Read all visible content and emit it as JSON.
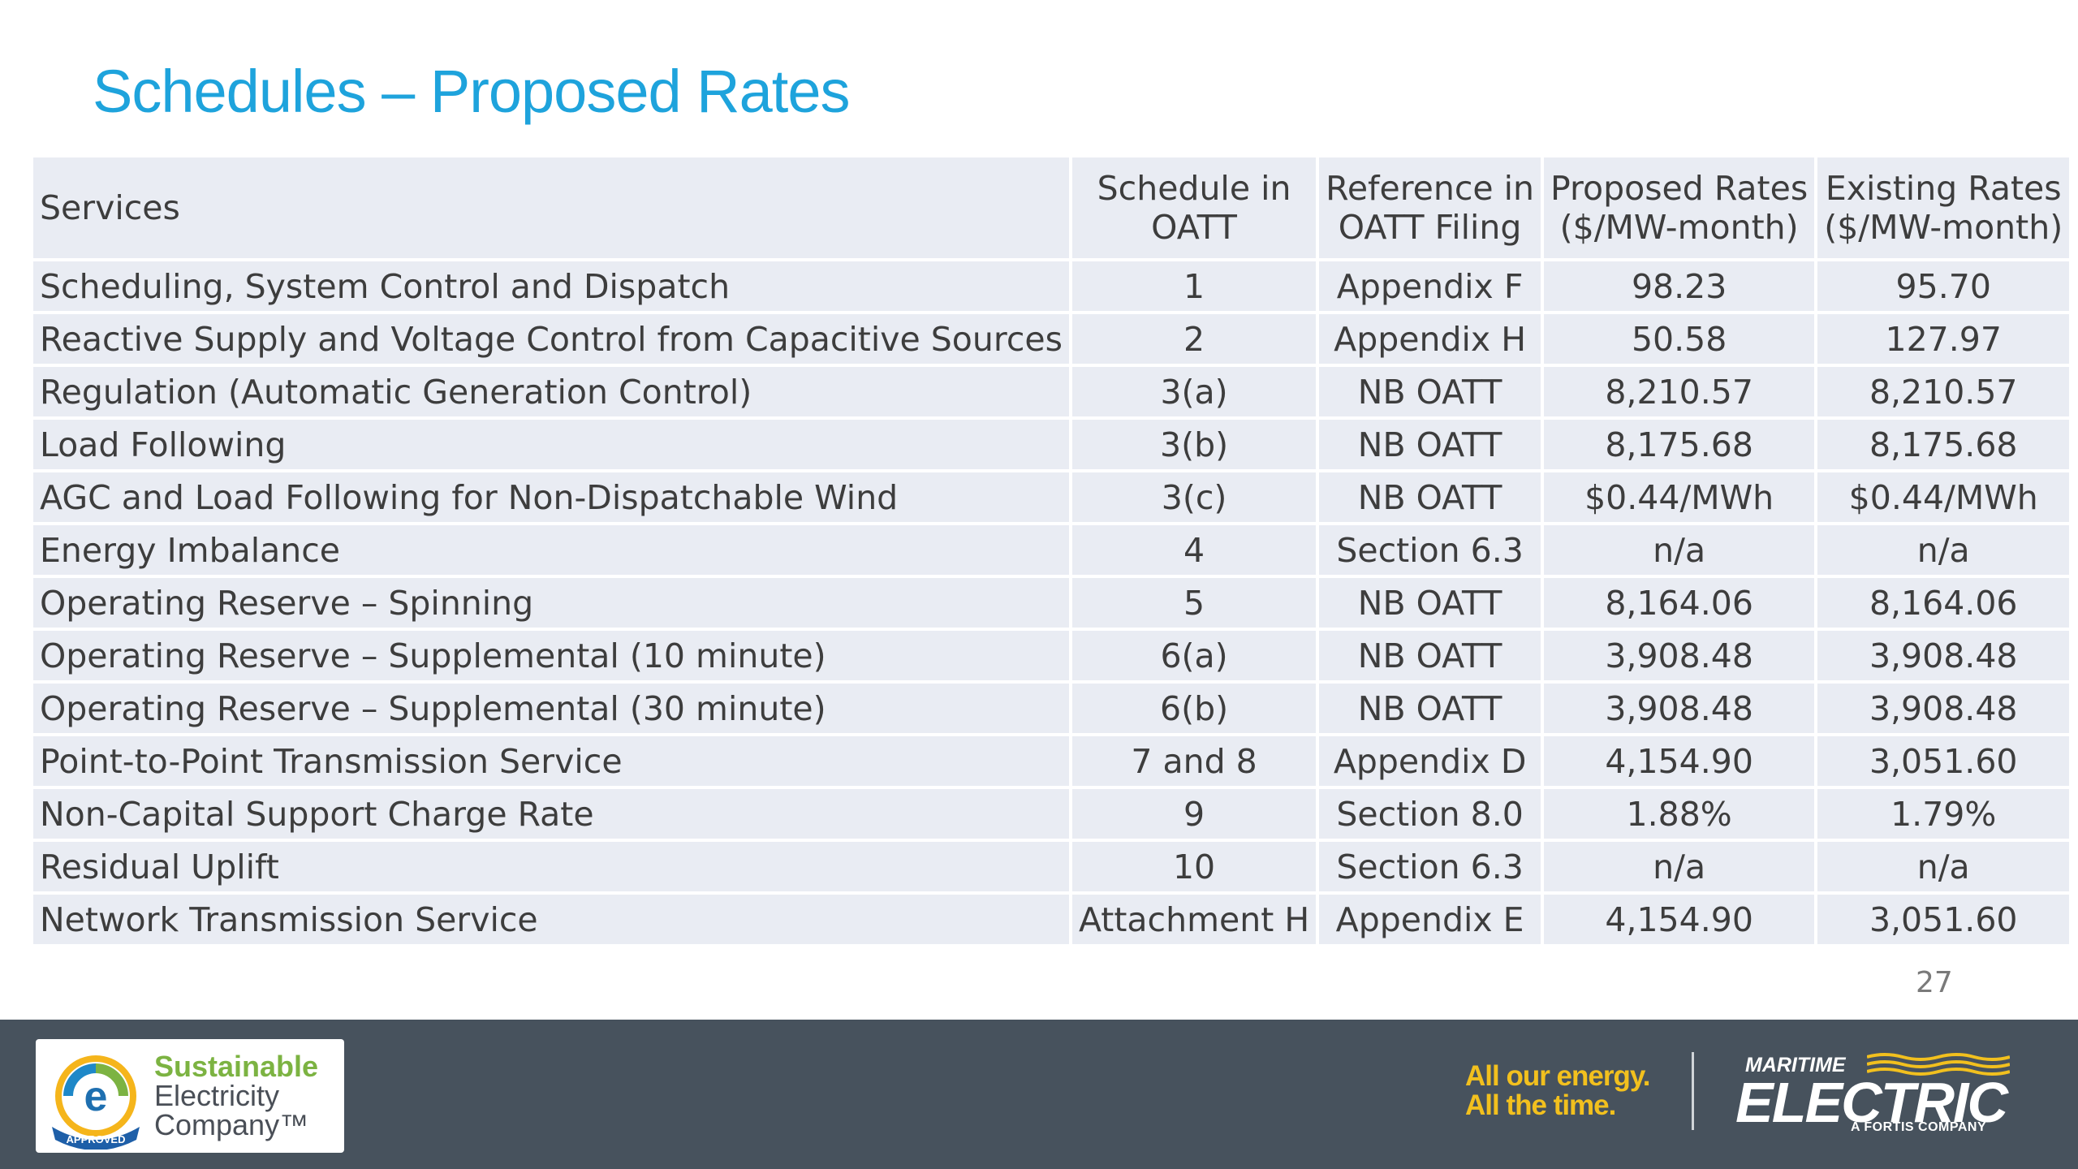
{
  "title": "Schedules – Proposed Rates",
  "table": {
    "headers": [
      "Services",
      "Schedule in OATT",
      "Reference in OATT Filing",
      "Proposed Rates ($/MW-month)",
      "Existing Rates ($/MW-month)"
    ],
    "header_lines": [
      [
        "Services"
      ],
      [
        "Schedule in",
        "OATT"
      ],
      [
        "Reference in",
        "OATT Filing"
      ],
      [
        "Proposed Rates",
        "($/MW-month)"
      ],
      [
        "Existing Rates",
        "($/MW-month)"
      ]
    ],
    "rows": [
      [
        "Scheduling, System Control and Dispatch",
        "1",
        "Appendix F",
        "98.23",
        "95.70"
      ],
      [
        "Reactive Supply and Voltage Control from Capacitive Sources",
        "2",
        "Appendix H",
        "50.58",
        "127.97"
      ],
      [
        "Regulation (Automatic Generation Control)",
        "3(a)",
        "NB OATT",
        "8,210.57",
        "8,210.57"
      ],
      [
        "Load Following",
        "3(b)",
        "NB OATT",
        "8,175.68",
        "8,175.68"
      ],
      [
        "AGC and Load Following for Non-Dispatchable Wind",
        "3(c)",
        "NB OATT",
        "$0.44/MWh",
        "$0.44/MWh"
      ],
      [
        "Energy Imbalance",
        "4",
        "Section 6.3",
        "n/a",
        "n/a"
      ],
      [
        "Operating Reserve – Spinning",
        "5",
        "NB OATT",
        "8,164.06",
        "8,164.06"
      ],
      [
        "Operating Reserve – Supplemental (10 minute)",
        "6(a)",
        "NB OATT",
        "3,908.48",
        "3,908.48"
      ],
      [
        "Operating Reserve – Supplemental (30 minute)",
        "6(b)",
        "NB OATT",
        "3,908.48",
        "3,908.48"
      ],
      [
        "Point-to-Point Transmission Service",
        "7 and 8",
        "Appendix D",
        "4,154.90",
        "3,051.60"
      ],
      [
        "Non-Capital Support Charge Rate",
        "9",
        "Section 8.0",
        "1.88%",
        "1.79%"
      ],
      [
        "Residual Uplift",
        "10",
        "Section 6.3",
        "n/a",
        "n/a"
      ],
      [
        "Network Transmission Service",
        "Attachment H",
        "Appendix E",
        "4,154.90",
        "3,051.60"
      ]
    ]
  },
  "page_number": "27",
  "footer": {
    "badge": {
      "line1": "Sustainable",
      "line2": "Electricity",
      "line3": "Company™",
      "seal_text": "APPROVED",
      "icon": "e-approved-seal-icon"
    },
    "tagline_line1": "All our energy.",
    "tagline_line2": "All the time.",
    "brand_top": "MARITIME",
    "brand_name": "ELECTRIC",
    "brand_sub": "A FORTIS COMPANY"
  },
  "colors": {
    "title": "#1ea3dc",
    "table_cell": "#e9ecf3",
    "footer_bg": "#47525d",
    "tagline": "#f2c01e",
    "badge_green": "#7cb342"
  }
}
